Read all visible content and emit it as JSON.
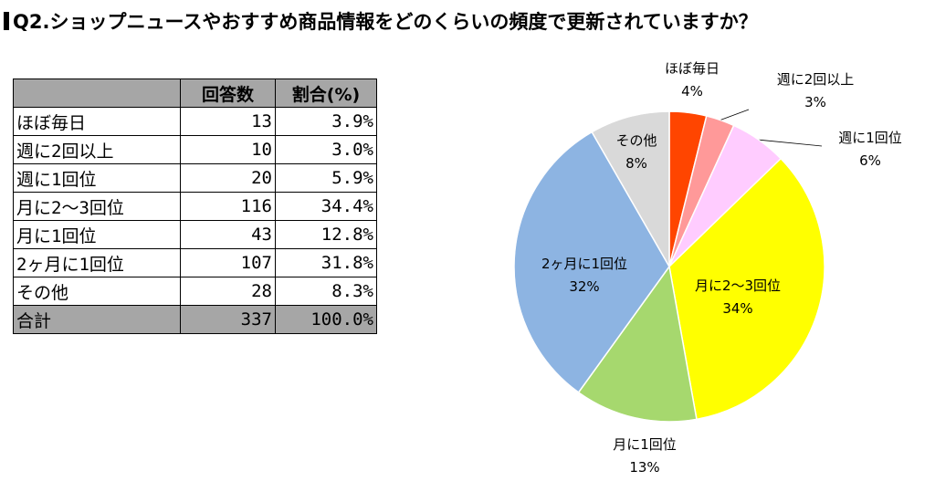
{
  "title": "Q2.ショップニュースやおすすめ商品情報をどのくらいの頻度で更新されていますか？",
  "table": {
    "headers": [
      "",
      "回答数",
      "割合(%)"
    ],
    "rows": [
      [
        "ほぼ毎日",
        "13",
        "3.9%"
      ],
      [
        "週に2回以上",
        "10",
        "3.0%"
      ],
      [
        "週に1回位",
        "20",
        "5.9%"
      ],
      [
        "月に2～3回位",
        "116",
        "34.4%"
      ],
      [
        "月に1回位",
        "43",
        "12.8%"
      ],
      [
        "2ヶ月に1回位",
        "107",
        "31.8%"
      ],
      [
        "その他",
        "28",
        "8.3%"
      ]
    ],
    "total": [
      "合計",
      "337",
      "100.0%"
    ]
  },
  "chart_data": {
    "type": "pie",
    "categories": [
      "ほぼ毎日",
      "週に2回以上",
      "週に1回位",
      "月に2～3回位",
      "月に1回位",
      "2ヶ月に1回位",
      "その他"
    ],
    "values": [
      13,
      10,
      20,
      116,
      43,
      107,
      28
    ],
    "percent_labels": [
      "4%",
      "3%",
      "6%",
      "34%",
      "13%",
      "32%",
      "8%"
    ],
    "colors": [
      "#ff4500",
      "#ff9999",
      "#ffccff",
      "#ffff00",
      "#a6d86e",
      "#8db4e2",
      "#d9d9d9"
    ],
    "start": "12 o'clock",
    "direction": "clockwise"
  }
}
